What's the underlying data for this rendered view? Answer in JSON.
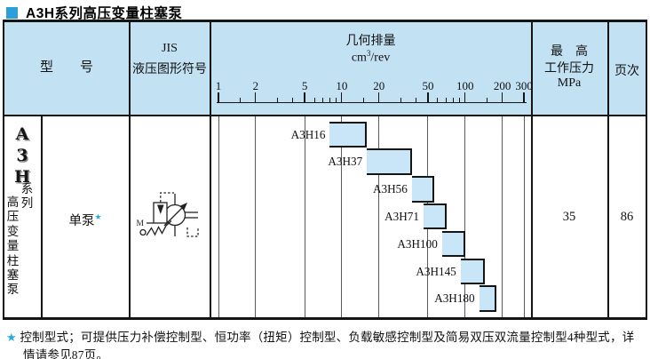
{
  "title": {
    "text": "A3H系列高压变量柱塞泵"
  },
  "table": {
    "header": {
      "model_col": "型　　号",
      "symbol_col_line1": "JIS",
      "symbol_col_line2": "液压图形符号",
      "displacement_title": "几何排量",
      "displacement_unit_base": "cm",
      "displacement_unit_sup": "3",
      "displacement_unit_rest": "/rev",
      "pressure_line1": "最　高",
      "pressure_line2": "工作压力",
      "pressure_line3": "MPa",
      "page_col": "页次"
    },
    "row": {
      "series_logo": [
        "A",
        "3",
        "H"
      ],
      "series_label_right": "系列",
      "series_label_left": "高压变量柱塞泵",
      "pump_type": "单泵",
      "pump_type_star": "★",
      "symbol_name": "jis-variable-displacement-pump-symbol",
      "max_pressure": "35",
      "page": "86"
    }
  },
  "chart_data": {
    "type": "bar",
    "orientation": "horizontal-range",
    "x_scale": "log",
    "x_range": [
      1,
      300
    ],
    "x_ticks": [
      1,
      2,
      5,
      10,
      20,
      50,
      100,
      200,
      300
    ],
    "x_minor_ticks": [
      1.5,
      3,
      4,
      6,
      7,
      8,
      9,
      15,
      30,
      40,
      60,
      70,
      80,
      90,
      150
    ],
    "title": "几何排量",
    "unit": "cm³/rev",
    "grid": true,
    "bars": [
      {
        "model": "A3H16",
        "range": [
          8,
          16
        ]
      },
      {
        "model": "A3H37",
        "range": [
          16,
          37
        ]
      },
      {
        "model": "A3H56",
        "range": [
          37,
          56
        ]
      },
      {
        "model": "A3H71",
        "range": [
          46,
          71
        ]
      },
      {
        "model": "A3H100",
        "range": [
          65,
          100
        ]
      },
      {
        "model": "A3H145",
        "range": [
          92,
          145
        ]
      },
      {
        "model": "A3H180",
        "range": [
          130,
          180
        ]
      }
    ]
  },
  "footnote": {
    "star": "★",
    "line1": "控制型式；可提供压力补偿控制型、恒功率（扭矩）控制型、负载敏感控制型及简易双压双流量控制型4种型式，详",
    "line2": "情请参见87页。"
  },
  "colors": {
    "accent_blue": "#2b9fd9",
    "star_blue": "#2aa8e0",
    "header_bg": "#c2e1f2",
    "bar_fill": "#c9e6f8",
    "border": "#141414",
    "grid_line": "#5a5a5a"
  }
}
